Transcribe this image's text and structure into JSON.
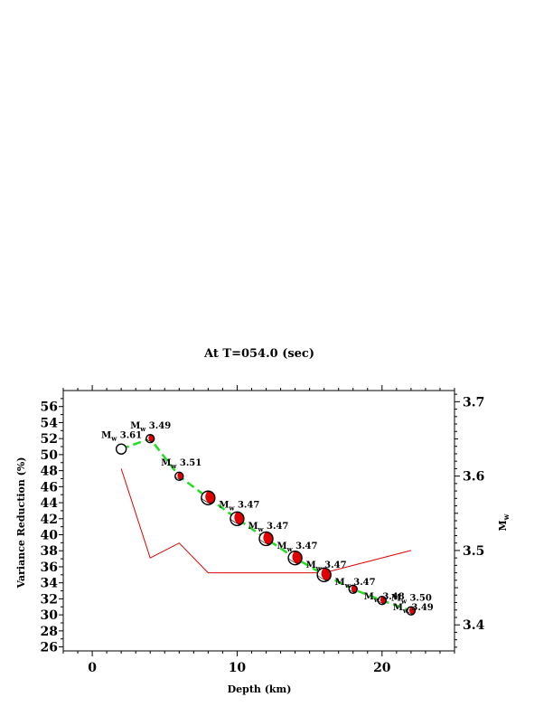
{
  "chart_data": {
    "type": "line",
    "title": "At T=054.0 (sec)",
    "xlabel": "Depth (km)",
    "ylabel_left": "Variance Reduction (%)",
    "ylabel_right": "Mw",
    "xlim": [
      -2,
      25
    ],
    "ylim_left": [
      25.5,
      58
    ],
    "ylim_right": [
      3.365,
      3.715
    ],
    "x_ticks": [
      0,
      10,
      20
    ],
    "y_left_ticks": [
      26,
      28,
      30,
      32,
      34,
      36,
      38,
      40,
      42,
      44,
      46,
      48,
      50,
      52,
      54,
      56
    ],
    "y_right_ticks": [
      3.4,
      3.5,
      3.6,
      3.7
    ],
    "y_right_tick_labels": [
      "3.4",
      "3.5",
      "3.6",
      "3.7"
    ],
    "grid": false,
    "depths": [
      2,
      4,
      6,
      8,
      10,
      12,
      14,
      16,
      18,
      20,
      22
    ],
    "series": [
      {
        "name": "Variance Reduction",
        "axis": "left",
        "color": "#22dd22",
        "style": "dashed",
        "values": [
          50.7,
          52.0,
          47.3,
          44.6,
          42.0,
          39.5,
          37.1,
          35.0,
          33.2,
          31.8,
          30.5
        ]
      },
      {
        "name": "Mw",
        "axis": "right",
        "color": "#e00000",
        "style": "solid",
        "values": [
          3.61,
          3.49,
          3.51,
          3.47,
          3.47,
          3.47,
          3.47,
          3.47,
          3.48,
          3.49,
          3.5
        ]
      }
    ],
    "annotations": [
      {
        "x": 2,
        "prefix": "M",
        "sub": "w",
        "value": "3.61",
        "placement": "above-left"
      },
      {
        "x": 4,
        "prefix": "M",
        "sub": "w",
        "value": "3.49",
        "placement": "above"
      },
      {
        "x": 6,
        "prefix": "M",
        "sub": "w",
        "value": "3.51",
        "placement": "above"
      },
      {
        "x": 8,
        "prefix": "M",
        "sub": "w",
        "value": "3.47",
        "placement": "right"
      },
      {
        "x": 10,
        "prefix": "M",
        "sub": "w",
        "value": "3.47",
        "placement": "right"
      },
      {
        "x": 12,
        "prefix": "M",
        "sub": "w",
        "value": "3.47",
        "placement": "right"
      },
      {
        "x": 14,
        "prefix": "M",
        "sub": "w",
        "value": "3.47",
        "placement": "right"
      },
      {
        "x": 16,
        "prefix": "M",
        "sub": "w",
        "value": "3.47",
        "placement": "right"
      },
      {
        "x": 18,
        "prefix": "M",
        "sub": "w",
        "value": "3.48",
        "placement": "right"
      },
      {
        "x": 20,
        "prefix": "M",
        "sub": "w",
        "value": "3.49",
        "placement": "right"
      },
      {
        "x": 22,
        "prefix": "M",
        "sub": "w",
        "value": "3.50",
        "placement": "above"
      }
    ],
    "beachballs": [
      {
        "x": 2,
        "size": "medium",
        "fill": "white"
      },
      {
        "x": 4,
        "size": "small",
        "fill": "red"
      },
      {
        "x": 6,
        "size": "small",
        "fill": "red"
      },
      {
        "x": 8,
        "size": "large",
        "fill": "red"
      },
      {
        "x": 10,
        "size": "large",
        "fill": "red"
      },
      {
        "x": 12,
        "size": "large",
        "fill": "red"
      },
      {
        "x": 14,
        "size": "large",
        "fill": "red"
      },
      {
        "x": 16,
        "size": "large",
        "fill": "red"
      },
      {
        "x": 18,
        "size": "small",
        "fill": "red"
      },
      {
        "x": 20,
        "size": "small",
        "fill": "red"
      },
      {
        "x": 22,
        "size": "small",
        "fill": "red"
      }
    ]
  },
  "ylabel_right_parts": {
    "main": "M",
    "sub": "w"
  }
}
